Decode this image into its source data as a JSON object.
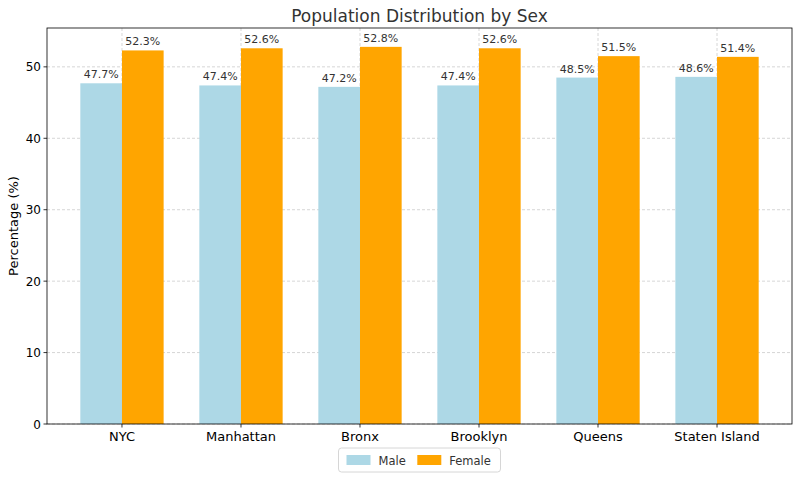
{
  "chart_data": {
    "type": "bar",
    "title": "Population Distribution by Sex",
    "y_label": "Percentage (%)",
    "categories": [
      "NYC",
      "Manhattan",
      "Bronx",
      "Brooklyn",
      "Queens",
      "Staten Island"
    ],
    "series": [
      {
        "name": "Male",
        "color": "#add8e6",
        "values": [
          47.7,
          47.4,
          47.2,
          47.4,
          48.5,
          48.6
        ],
        "value_labels": [
          "47.7%",
          "47.4%",
          "47.2%",
          "47.4%",
          "48.5%",
          "48.6%"
        ]
      },
      {
        "name": "Female",
        "color": "#ffa500",
        "values": [
          52.3,
          52.6,
          52.8,
          52.6,
          51.5,
          51.4
        ],
        "value_labels": [
          "52.3%",
          "52.6%",
          "52.8%",
          "52.6%",
          "51.5%",
          "51.4%"
        ]
      }
    ],
    "ylim": [
      0,
      55.44
    ],
    "yticks": [
      0,
      10,
      20,
      30,
      40,
      50
    ],
    "grid": true,
    "legend": "bottom",
    "data_labels": true
  }
}
